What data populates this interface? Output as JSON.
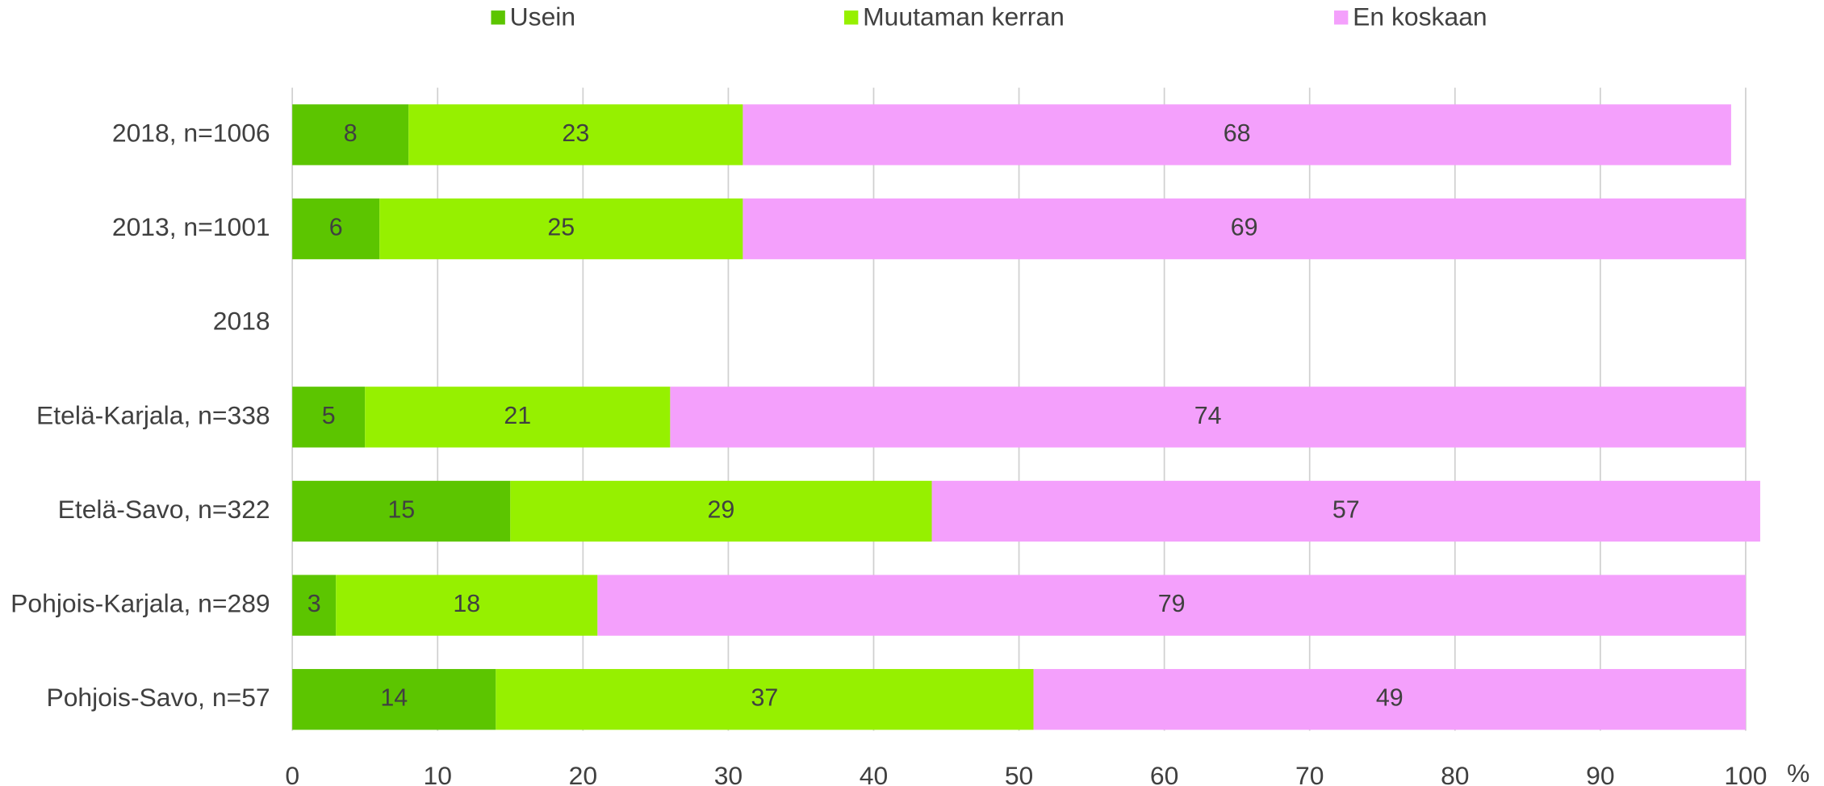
{
  "chart_data": {
    "type": "stacked_bar_horizontal",
    "categories": [
      "2018, n=1006",
      "2013, n=1001",
      "2018",
      "Etelä-Karjala, n=338",
      "Etelä-Savo, n=322",
      "Pohjois-Karjala, n=289",
      "Pohjois-Savo, n=57"
    ],
    "series": [
      {
        "name": "Usein",
        "color": "#5cc500",
        "values": [
          8,
          6,
          null,
          5,
          15,
          3,
          14
        ]
      },
      {
        "name": "Muutaman kerran",
        "color": "#96f000",
        "values": [
          23,
          25,
          null,
          21,
          29,
          18,
          37
        ]
      },
      {
        "name": "En koskaan",
        "color": "#f4a0fc",
        "values": [
          68,
          69,
          null,
          74,
          57,
          79,
          49
        ]
      }
    ],
    "x_label": "%",
    "xlim": [
      0,
      100
    ],
    "xticks": [
      0,
      10,
      20,
      30,
      40,
      50,
      60,
      70,
      80,
      90,
      100
    ],
    "grid": true,
    "legend": "top"
  }
}
